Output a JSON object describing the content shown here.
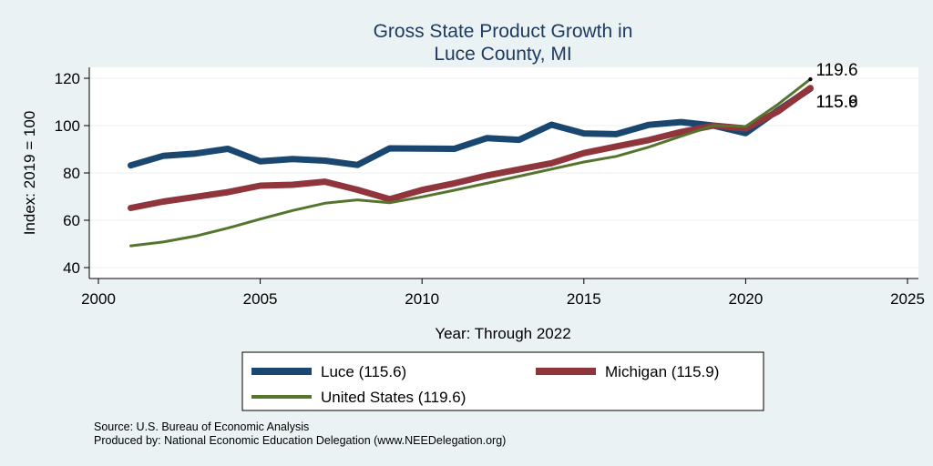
{
  "chart_data": {
    "type": "line",
    "title": [
      "Gross State Product Growth in",
      "Luce County, MI"
    ],
    "xlabel": "Year: Through 2022",
    "ylabel": "Index: 2019 = 100",
    "xlim": [
      2000,
      2025
    ],
    "ylim": [
      40,
      120
    ],
    "xticks": [
      2000,
      2005,
      2010,
      2015,
      2020,
      2025
    ],
    "yticks": [
      40,
      60,
      80,
      100,
      120
    ],
    "grid": "horizontal",
    "legend_placement": "bottom",
    "x": [
      2001,
      2002,
      2003,
      2004,
      2005,
      2006,
      2007,
      2008,
      2009,
      2010,
      2011,
      2012,
      2013,
      2014,
      2015,
      2016,
      2017,
      2018,
      2019,
      2020,
      2021,
      2022
    ],
    "series": [
      {
        "name": "Luce",
        "legend": "Luce  (115.6)",
        "color": "#1a476f",
        "values": [
          83.2,
          87.2,
          88.2,
          90.2,
          84.9,
          85.9,
          85.2,
          83.4,
          90.4,
          90.3,
          90.2,
          94.7,
          94.0,
          100.4,
          96.7,
          96.4,
          100.3,
          101.5,
          100.0,
          96.8,
          106.5,
          115.6
        ]
      },
      {
        "name": "Michigan",
        "legend": "Michigan (115.9)",
        "color": "#90353b",
        "values": [
          65.2,
          67.9,
          69.9,
          71.9,
          74.6,
          75.0,
          76.3,
          72.9,
          68.9,
          72.8,
          75.6,
          78.9,
          81.5,
          84.1,
          88.4,
          91.2,
          93.9,
          97.3,
          100.0,
          98.8,
          106.0,
          115.9
        ]
      },
      {
        "name": "United States",
        "legend": "United States (119.6)",
        "color": "#55752f",
        "values": [
          49.2,
          50.8,
          53.3,
          56.7,
          60.5,
          64.1,
          67.2,
          68.6,
          67.4,
          69.9,
          72.7,
          75.6,
          78.6,
          81.6,
          84.6,
          87.0,
          90.9,
          95.5,
          100.0,
          99.6,
          109.0,
          119.6
        ]
      }
    ],
    "end_labels": [
      "119.6",
      "115.9",
      "115.6"
    ]
  },
  "source": {
    "line1": "Source: U.S. Bureau of Economic Analysis",
    "line2": "Produced by: National Economic Education Delegation (www.NEEDelegation.org)"
  }
}
